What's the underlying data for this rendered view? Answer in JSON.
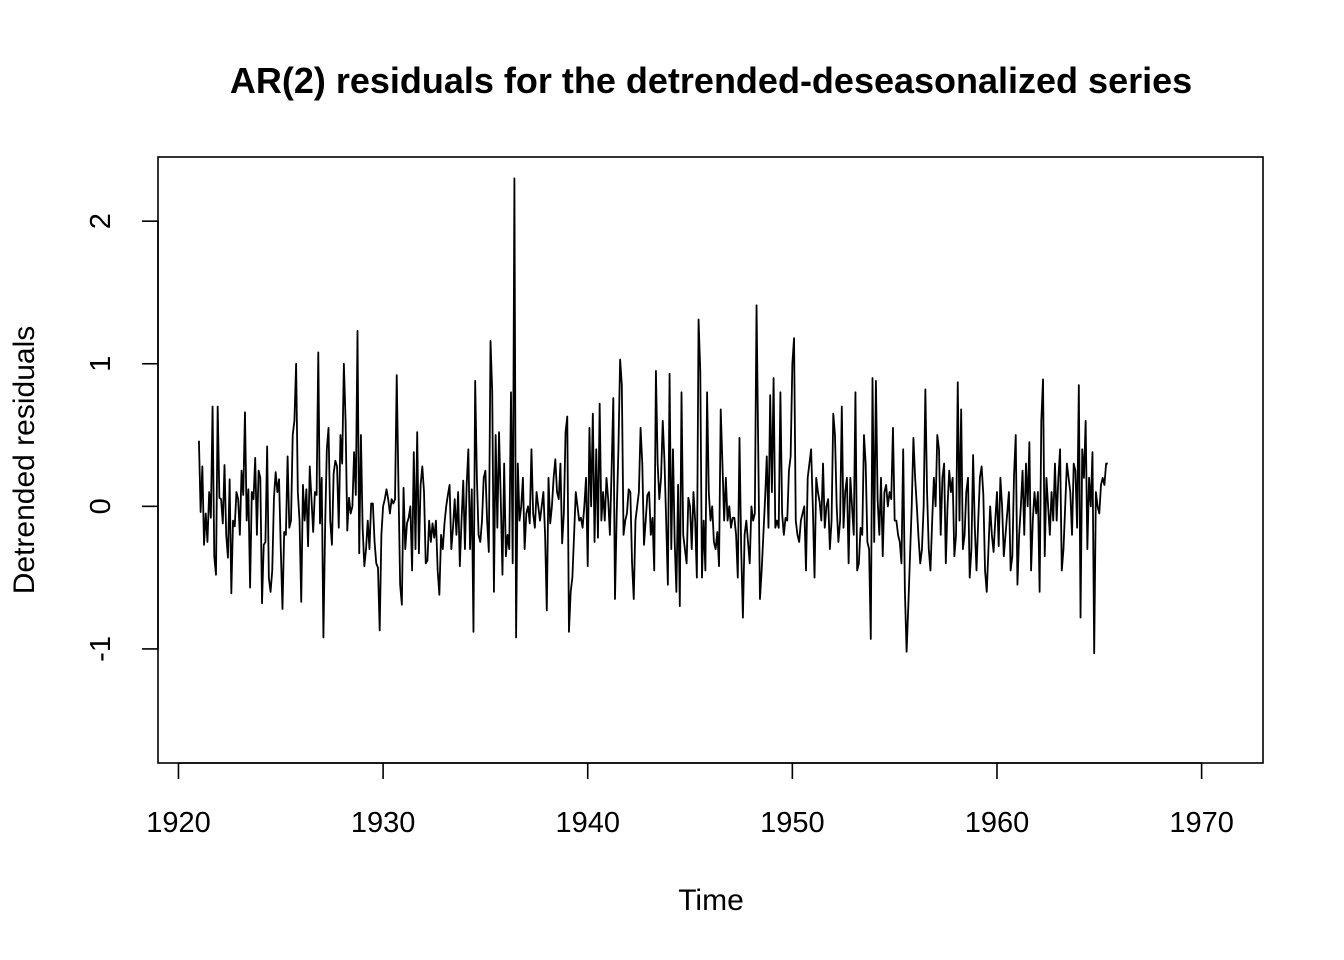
{
  "chart_data": {
    "type": "line",
    "title": "AR(2) residuals for the detrended-deseasonalized series",
    "xlabel": "Time",
    "ylabel": "Detrended residuals",
    "xlim": [
      1919,
      1973
    ],
    "ylim": [
      -1.8,
      2.45
    ],
    "x_ticks": [
      1920,
      1930,
      1940,
      1950,
      1960,
      1970
    ],
    "y_ticks": [
      -1,
      0,
      1,
      2
    ],
    "x_start": 1921.0,
    "x_step": 0.083333,
    "grid": false,
    "legend": "none",
    "color": "#000000",
    "series": [
      {
        "values": [
          0.46,
          -0.04,
          0.28,
          -0.27,
          -0.05,
          -0.25,
          0.1,
          -0.08,
          0.7,
          -0.35,
          -0.48,
          0.7,
          0.06,
          0.05,
          -0.12,
          0.29,
          -0.2,
          -0.36,
          0.19,
          -0.61,
          -0.1,
          -0.14,
          0.1,
          0.05,
          -0.2,
          0.25,
          0.08,
          0.66,
          -0.1,
          0.12,
          -0.57,
          0.1,
          0.05,
          0.34,
          -0.2,
          0.25,
          0.2,
          -0.68,
          -0.27,
          -0.25,
          0.42,
          -0.5,
          -0.6,
          -0.45,
          0.06,
          0.24,
          0.1,
          0.19,
          -0.3,
          -0.72,
          -0.18,
          -0.2,
          0.35,
          -0.15,
          -0.1,
          0.5,
          0.6,
          1.0,
          0.1,
          -0.1,
          -0.67,
          0.15,
          -0.1,
          0.12,
          -0.28,
          0.28,
          0.05,
          -0.18,
          0.1,
          0.08,
          1.08,
          -0.12,
          0.2,
          -0.92,
          -0.15,
          0.4,
          0.55,
          -0.1,
          -0.27,
          0.23,
          0.32,
          0.28,
          -0.15,
          0.5,
          0.3,
          1.0,
          0.6,
          -0.17,
          0.06,
          -0.05,
          0.0,
          0.38,
          0.08,
          1.23,
          -0.33,
          0.5,
          -0.15,
          -0.42,
          -0.3,
          -0.1,
          -0.3,
          0.02,
          0.02,
          -0.25,
          -0.4,
          -0.43,
          -0.87,
          -0.2,
          0.0,
          0.05,
          0.12,
          0.05,
          -0.05,
          0.05,
          0.02,
          0.05,
          0.92,
          0.15,
          -0.55,
          -0.69,
          0.13,
          -0.3,
          -0.12,
          -0.08,
          0.0,
          -0.45,
          0.38,
          -0.3,
          0.52,
          -0.33,
          0.15,
          0.28,
          0.1,
          -0.4,
          -0.38,
          -0.1,
          -0.25,
          -0.12,
          -0.22,
          -0.1,
          -0.45,
          -0.62,
          -0.2,
          -0.3,
          -0.12,
          0.0,
          0.08,
          0.15,
          -0.3,
          -0.15,
          0.05,
          -0.2,
          0.1,
          -0.42,
          -0.1,
          0.18,
          -0.3,
          0.15,
          0.4,
          -0.3,
          0.12,
          -0.88,
          0.88,
          0.2,
          -0.2,
          -0.25,
          -0.1,
          0.2,
          0.25,
          -0.1,
          -0.32,
          1.16,
          0.8,
          -0.6,
          0.5,
          -0.15,
          0.52,
          0.05,
          -0.48,
          0.3,
          -0.35,
          -0.2,
          -0.3,
          0.8,
          -0.4,
          2.3,
          -0.92,
          0.3,
          -0.1,
          0.0,
          0.2,
          -0.3,
          -0.05,
          0.0,
          -0.12,
          0.4,
          -0.05,
          -0.15,
          0.1,
          0.0,
          -0.1,
          0.0,
          0.1,
          -0.2,
          -0.73,
          0.2,
          -0.12,
          0.0,
          0.2,
          0.33,
          0.1,
          0.05,
          0.3,
          -0.26,
          -0.05,
          0.52,
          0.63,
          -0.88,
          -0.6,
          -0.5,
          -0.2,
          0.1,
          0.0,
          -0.1,
          -0.08,
          -0.15,
          0.0,
          0.2,
          -0.42,
          0.55,
          0.0,
          0.65,
          -0.25,
          0.4,
          -0.22,
          0.72,
          -0.1,
          0.1,
          -0.1,
          0.2,
          0.05,
          -0.2,
          0.25,
          0.76,
          -0.65,
          -0.05,
          0.4,
          1.03,
          0.85,
          -0.2,
          -0.1,
          -0.05,
          0.12,
          0.1,
          -0.4,
          -0.65,
          -0.1,
          0.0,
          0.1,
          0.55,
          0.3,
          -0.27,
          -0.1,
          0.08,
          0.1,
          -0.2,
          -0.08,
          -0.45,
          0.95,
          0.3,
          0.05,
          0.2,
          0.6,
          0.32,
          -0.1,
          -0.55,
          0.93,
          -0.3,
          0.4,
          -0.25,
          -0.6,
          0.15,
          -0.7,
          0.8,
          -0.2,
          -0.3,
          -0.4,
          0.06,
          0.0,
          -0.3,
          0.1,
          -0.1,
          -0.5,
          1.31,
          0.95,
          -0.5,
          -0.1,
          -0.45,
          0.8,
          0.1,
          -0.1,
          0.0,
          -0.25,
          -0.3,
          -0.18,
          -0.42,
          0.68,
          0.3,
          -0.1,
          0.2,
          -0.1,
          0.0,
          -0.15,
          -0.08,
          -0.08,
          -0.2,
          -0.5,
          0.48,
          -0.3,
          -0.78,
          -0.2,
          -0.1,
          -0.25,
          -0.4,
          0.0,
          -0.1,
          -0.05,
          1.41,
          0.4,
          -0.65,
          -0.45,
          -0.2,
          0.05,
          0.35,
          -0.15,
          0.78,
          0.1,
          0.9,
          -0.15,
          -0.1,
          -0.15,
          0.8,
          -0.05,
          -0.2,
          -0.08,
          -0.1,
          0.25,
          0.35,
          1.0,
          1.18,
          -0.1,
          -0.2,
          -0.25,
          -0.1,
          -0.05,
          0.0,
          -0.45,
          0.2,
          0.3,
          0.4,
          0.0,
          -0.5,
          0.2,
          0.1,
          0.03,
          -0.1,
          0.3,
          -0.15,
          0.0,
          0.05,
          -0.3,
          -0.1,
          0.65,
          0.5,
          0.0,
          -0.25,
          -0.1,
          0.7,
          -0.15,
          0.1,
          0.2,
          -0.4,
          0.2,
          0.0,
          -0.2,
          0.8,
          -0.45,
          -0.4,
          -0.15,
          -0.2,
          0.5,
          0.3,
          -0.25,
          -0.3,
          -0.93,
          0.9,
          -0.25,
          0.88,
          0.05,
          -0.2,
          0.2,
          -0.35,
          0.1,
          0.15,
          0.0,
          0.1,
          0.05,
          0.55,
          -0.1,
          -0.1,
          -0.2,
          -0.25,
          -0.4,
          0.4,
          -0.6,
          -1.02,
          -0.7,
          -0.35,
          0.0,
          0.48,
          0.2,
          0.0,
          -0.22,
          -0.4,
          -0.3,
          0.0,
          0.82,
          0.1,
          -0.3,
          -0.45,
          -0.1,
          0.2,
          0.0,
          0.5,
          0.4,
          -0.2,
          0.2,
          0.3,
          -0.4,
          0.0,
          0.25,
          0.1,
          0.2,
          -0.35,
          -0.2,
          0.87,
          -0.1,
          0.68,
          -0.3,
          -0.2,
          0.1,
          0.2,
          -0.5,
          -0.3,
          0.36,
          -0.15,
          -0.45,
          -0.1,
          0.2,
          0.28,
          0.08,
          -0.45,
          -0.6,
          -0.3,
          0.0,
          -0.2,
          -0.32,
          -0.1,
          0.1,
          -0.28,
          0.2,
          0.0,
          -0.35,
          -0.2,
          -0.05,
          0.1,
          -0.45,
          -0.35,
          0.22,
          0.5,
          -0.55,
          -0.2,
          0.0,
          0.25,
          -0.2,
          0.3,
          0.0,
          0.45,
          -0.45,
          -0.1,
          0.1,
          -0.05,
          0.1,
          -0.6,
          0.6,
          0.89,
          -0.35,
          0.2,
          0.0,
          -0.2,
          0.1,
          -0.1,
          0.3,
          -0.1,
          0.2,
          0.4,
          -0.45,
          -0.3,
          0.0,
          0.3,
          0.2,
          0.1,
          -0.2,
          0.3,
          0.25,
          -0.15,
          0.85,
          -0.78,
          0.4,
          0.2,
          0.6,
          -0.3,
          0.2,
          0.0,
          0.38,
          -1.03,
          0.1,
          0.0,
          -0.05,
          0.15,
          0.2,
          0.15,
          0.3,
          0.3
        ]
      }
    ]
  }
}
